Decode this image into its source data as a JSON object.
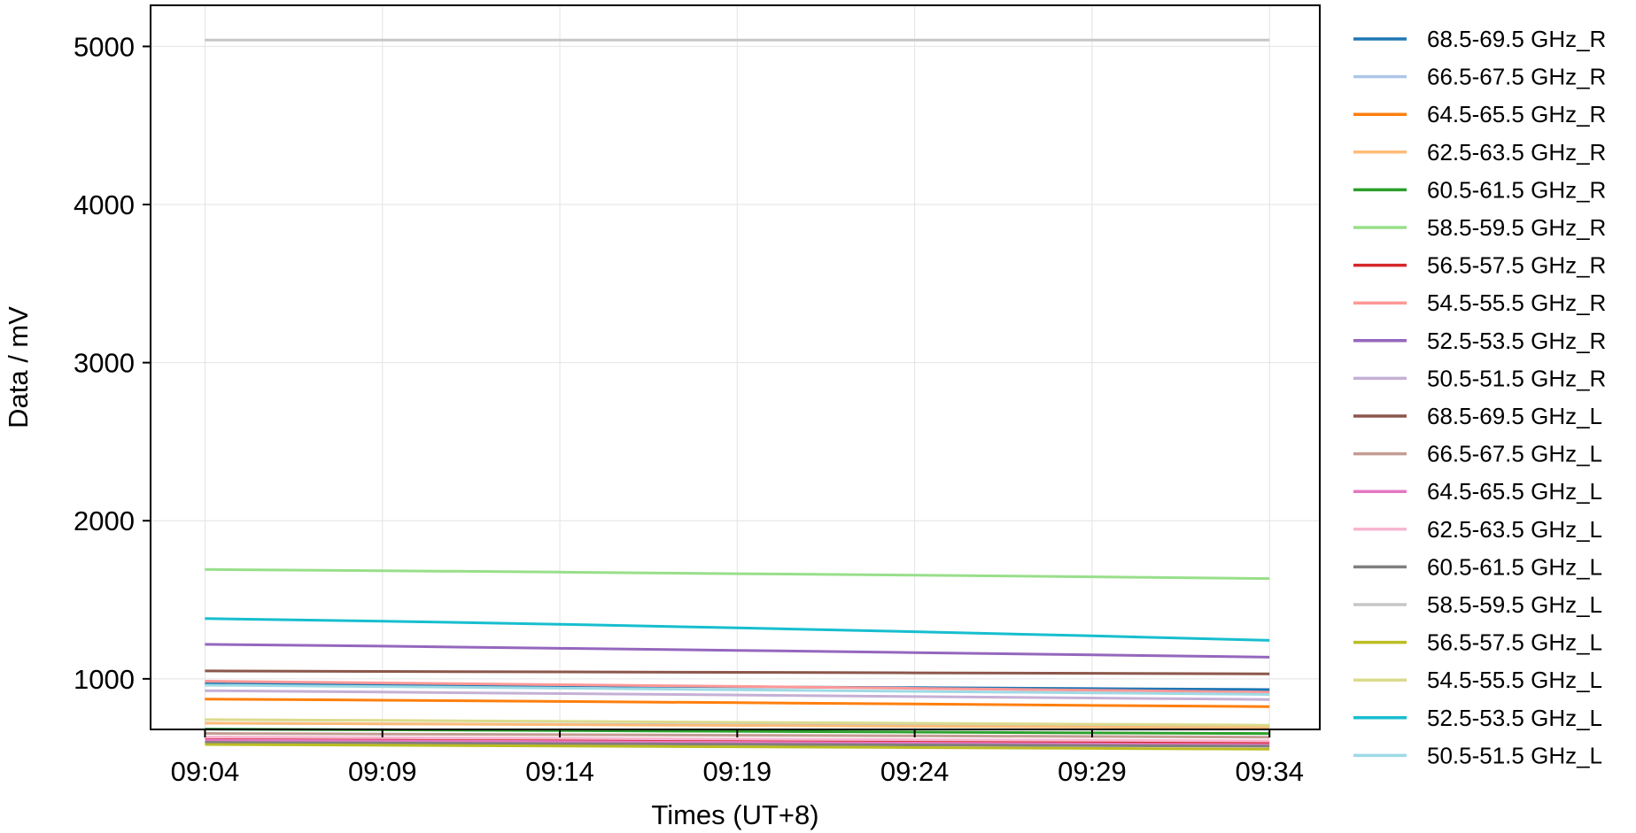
{
  "chart_data": {
    "type": "line",
    "title": "",
    "xlabel": "Times (UT+8)",
    "ylabel": "Data / mV",
    "x": [
      "09:04",
      "09:09",
      "09:14",
      "09:19",
      "09:24",
      "09:29",
      "09:34"
    ],
    "xlim": [
      "09:02:28",
      "09:35:25"
    ],
    "ylim": [
      680,
      5260
    ],
    "yticks": [
      1000,
      2000,
      3000,
      4000,
      5000
    ],
    "grid": true,
    "legend_position": "outside-right",
    "series": [
      {
        "name": "68.5-69.5 GHz_R",
        "color": "#1f77b4",
        "values": [
          970,
          963,
          957,
          950,
          944,
          938,
          932
        ]
      },
      {
        "name": "66.5-67.5 GHz_R",
        "color": "#aec7e8",
        "values": [
          720,
          716,
          712,
          709,
          706,
          703,
          700
        ]
      },
      {
        "name": "64.5-65.5 GHz_R",
        "color": "#ff7f0e",
        "values": [
          872,
          865,
          857,
          849,
          841,
          832,
          824
        ]
      },
      {
        "name": "62.5-63.5 GHz_R",
        "color": "#ffbb78",
        "values": [
          720,
          715,
          710,
          705,
          700,
          695,
          690
        ]
      },
      {
        "name": "60.5-61.5 GHz_R",
        "color": "#2ca02c",
        "values": [
          682,
          678,
          673,
          668,
          663,
          658,
          654
        ]
      },
      {
        "name": "58.5-59.5 GHz_R",
        "color": "#98df8a",
        "values": [
          1692,
          1684,
          1675,
          1665,
          1656,
          1645,
          1634
        ]
      },
      {
        "name": "56.5-57.5 GHz_R",
        "color": "#d62728",
        "values": [
          625,
          620,
          615,
          610,
          605,
          600,
          595
        ]
      },
      {
        "name": "54.5-55.5 GHz_R",
        "color": "#ff9896",
        "values": [
          985,
          974,
          963,
          952,
          940,
          928,
          915
        ]
      },
      {
        "name": "52.5-53.5 GHz_R",
        "color": "#9467bd",
        "values": [
          1218,
          1207,
          1193,
          1180,
          1166,
          1152,
          1137
        ]
      },
      {
        "name": "50.5-51.5 GHz_R",
        "color": "#c5b0d5",
        "values": [
          925,
          916,
          907,
          898,
          888,
          879,
          869
        ]
      },
      {
        "name": "68.5-69.5 GHz_L",
        "color": "#8c564b",
        "values": [
          1050,
          1047,
          1044,
          1041,
          1038,
          1035,
          1031
        ]
      },
      {
        "name": "66.5-67.5 GHz_L",
        "color": "#c49c94",
        "values": [
          655,
          651,
          647,
          643,
          639,
          635,
          631
        ]
      },
      {
        "name": "64.5-65.5 GHz_L",
        "color": "#e377c2",
        "values": [
          612,
          608,
          603,
          598,
          593,
          588,
          583
        ]
      },
      {
        "name": "62.5-63.5 GHz_L",
        "color": "#f7b6d2",
        "values": [
          632,
          628,
          624,
          619,
          615,
          611,
          607
        ]
      },
      {
        "name": "60.5-61.5 GHz_L",
        "color": "#7f7f7f",
        "values": [
          598,
          594,
          590,
          586,
          582,
          578,
          574
        ]
      },
      {
        "name": "58.5-59.5 GHz_L",
        "color": "#c7c7c7",
        "values": [
          5040,
          5040,
          5040,
          5040,
          5040,
          5040,
          5040
        ]
      },
      {
        "name": "56.5-57.5 GHz_L",
        "color": "#bcbd22",
        "values": [
          585,
          580,
          575,
          570,
          565,
          560,
          555
        ]
      },
      {
        "name": "54.5-55.5 GHz_L",
        "color": "#dbdb8d",
        "values": [
          742,
          737,
          731,
          725,
          719,
          713,
          707
        ]
      },
      {
        "name": "52.5-53.5 GHz_L",
        "color": "#17becf",
        "values": [
          1381,
          1365,
          1345,
          1322,
          1298,
          1272,
          1243
        ]
      },
      {
        "name": "50.5-51.5 GHz_L",
        "color": "#9edae5",
        "values": [
          960,
          951,
          941,
          931,
          921,
          911,
          901
        ]
      }
    ]
  }
}
